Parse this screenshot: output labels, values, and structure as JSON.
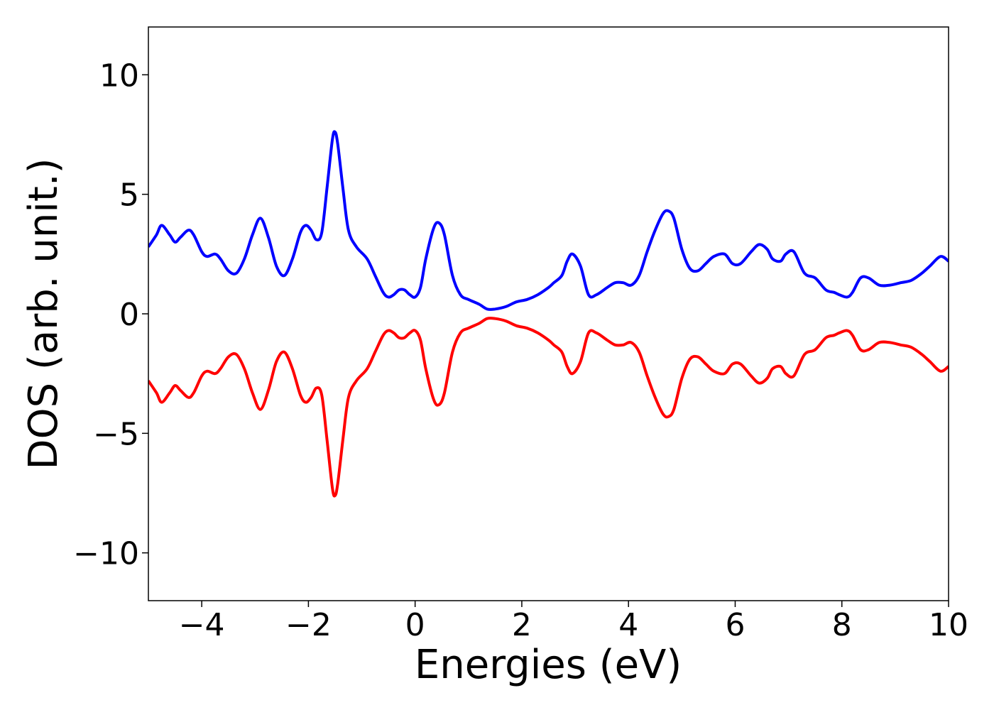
{
  "chart_data": {
    "type": "line",
    "title": "",
    "xlabel": "Energies (eV)",
    "ylabel": "DOS (arb. unit.)",
    "xlim": [
      -5,
      10
    ],
    "ylim": [
      -12,
      12
    ],
    "xticks": [
      -4,
      -2,
      0,
      2,
      4,
      6,
      8,
      10
    ],
    "yticks": [
      -10,
      -5,
      0,
      5,
      10
    ],
    "xtick_labels": [
      "−4",
      "−2",
      "0",
      "2",
      "4",
      "6",
      "8",
      "10"
    ],
    "ytick_labels": [
      "−10",
      "−5",
      "0",
      "5",
      "10"
    ],
    "grid": false,
    "legend": "none",
    "series": [
      {
        "color": "#0000ff",
        "x": [
          -5.0,
          -4.85,
          -4.75,
          -4.6,
          -4.5,
          -4.4,
          -4.25,
          -4.15,
          -4.0,
          -3.9,
          -3.75,
          -3.65,
          -3.5,
          -3.35,
          -3.2,
          -3.05,
          -2.9,
          -2.75,
          -2.6,
          -2.45,
          -2.3,
          -2.15,
          -2.05,
          -1.95,
          -1.85,
          -1.75,
          -1.65,
          -1.55,
          -1.5,
          -1.45,
          -1.35,
          -1.25,
          -1.1,
          -0.9,
          -0.75,
          -0.6,
          -0.5,
          -0.4,
          -0.3,
          -0.2,
          -0.1,
          0.0,
          0.1,
          0.2,
          0.35,
          0.45,
          0.55,
          0.7,
          0.85,
          1.0,
          1.2,
          1.35,
          1.5,
          1.7,
          1.9,
          2.1,
          2.3,
          2.5,
          2.6,
          2.75,
          2.85,
          2.95,
          3.1,
          3.25,
          3.4,
          3.6,
          3.75,
          3.9,
          4.05,
          4.2,
          4.35,
          4.5,
          4.65,
          4.75,
          4.85,
          5.0,
          5.15,
          5.3,
          5.45,
          5.6,
          5.8,
          5.95,
          6.1,
          6.3,
          6.45,
          6.6,
          6.7,
          6.85,
          6.95,
          7.1,
          7.3,
          7.5,
          7.7,
          7.85,
          7.95,
          8.1,
          8.2,
          8.35,
          8.5,
          8.7,
          8.9,
          9.1,
          9.3,
          9.5,
          9.65,
          9.85,
          10.0
        ],
        "values": [
          2.8,
          3.3,
          3.7,
          3.3,
          3.0,
          3.2,
          3.5,
          3.3,
          2.6,
          2.4,
          2.5,
          2.3,
          1.8,
          1.7,
          2.3,
          3.3,
          4.0,
          3.2,
          2.0,
          1.6,
          2.3,
          3.4,
          3.7,
          3.5,
          3.1,
          3.4,
          5.3,
          7.3,
          7.6,
          7.1,
          5.2,
          3.5,
          2.8,
          2.3,
          1.6,
          0.9,
          0.7,
          0.8,
          1.0,
          1.0,
          0.8,
          0.7,
          1.1,
          2.3,
          3.6,
          3.8,
          3.3,
          1.6,
          0.8,
          0.6,
          0.4,
          0.2,
          0.2,
          0.3,
          0.5,
          0.6,
          0.8,
          1.1,
          1.3,
          1.6,
          2.2,
          2.5,
          2.0,
          0.8,
          0.8,
          1.1,
          1.3,
          1.3,
          1.2,
          1.6,
          2.6,
          3.5,
          4.2,
          4.3,
          4.0,
          2.7,
          1.9,
          1.8,
          2.1,
          2.4,
          2.5,
          2.1,
          2.1,
          2.6,
          2.9,
          2.7,
          2.3,
          2.2,
          2.5,
          2.6,
          1.7,
          1.5,
          1.0,
          0.9,
          0.8,
          0.7,
          0.9,
          1.5,
          1.5,
          1.2,
          1.2,
          1.3,
          1.4,
          1.7,
          2.0,
          2.4,
          2.2
        ]
      },
      {
        "color": "#ff0000",
        "x": [
          -5.0,
          -4.85,
          -4.75,
          -4.6,
          -4.5,
          -4.4,
          -4.25,
          -4.15,
          -4.0,
          -3.9,
          -3.75,
          -3.65,
          -3.5,
          -3.35,
          -3.2,
          -3.05,
          -2.9,
          -2.75,
          -2.6,
          -2.45,
          -2.3,
          -2.15,
          -2.05,
          -1.95,
          -1.85,
          -1.75,
          -1.65,
          -1.55,
          -1.5,
          -1.45,
          -1.35,
          -1.25,
          -1.1,
          -0.9,
          -0.75,
          -0.6,
          -0.5,
          -0.4,
          -0.3,
          -0.2,
          -0.1,
          0.0,
          0.1,
          0.2,
          0.35,
          0.45,
          0.55,
          0.7,
          0.85,
          1.0,
          1.2,
          1.35,
          1.5,
          1.7,
          1.9,
          2.1,
          2.3,
          2.5,
          2.6,
          2.75,
          2.85,
          2.95,
          3.1,
          3.25,
          3.4,
          3.6,
          3.75,
          3.9,
          4.05,
          4.2,
          4.35,
          4.5,
          4.65,
          4.75,
          4.85,
          5.0,
          5.15,
          5.3,
          5.45,
          5.6,
          5.8,
          5.95,
          6.1,
          6.3,
          6.45,
          6.6,
          6.7,
          6.85,
          6.95,
          7.1,
          7.3,
          7.5,
          7.7,
          7.85,
          7.95,
          8.1,
          8.2,
          8.35,
          8.5,
          8.7,
          8.9,
          9.1,
          9.3,
          9.5,
          9.65,
          9.85,
          10.0
        ],
        "values": [
          -2.8,
          -3.3,
          -3.7,
          -3.3,
          -3.0,
          -3.2,
          -3.5,
          -3.3,
          -2.6,
          -2.4,
          -2.5,
          -2.3,
          -1.8,
          -1.7,
          -2.3,
          -3.3,
          -4.0,
          -3.2,
          -2.0,
          -1.6,
          -2.3,
          -3.4,
          -3.7,
          -3.5,
          -3.1,
          -3.4,
          -5.3,
          -7.3,
          -7.6,
          -7.1,
          -5.2,
          -3.5,
          -2.8,
          -2.3,
          -1.6,
          -0.9,
          -0.7,
          -0.8,
          -1.0,
          -1.0,
          -0.8,
          -0.7,
          -1.1,
          -2.3,
          -3.6,
          -3.8,
          -3.3,
          -1.6,
          -0.8,
          -0.6,
          -0.4,
          -0.2,
          -0.2,
          -0.3,
          -0.5,
          -0.6,
          -0.8,
          -1.1,
          -1.3,
          -1.6,
          -2.2,
          -2.5,
          -2.0,
          -0.8,
          -0.8,
          -1.1,
          -1.3,
          -1.3,
          -1.2,
          -1.6,
          -2.6,
          -3.5,
          -4.2,
          -4.3,
          -4.0,
          -2.7,
          -1.9,
          -1.8,
          -2.1,
          -2.4,
          -2.5,
          -2.1,
          -2.1,
          -2.6,
          -2.9,
          -2.7,
          -2.3,
          -2.2,
          -2.5,
          -2.6,
          -1.7,
          -1.5,
          -1.0,
          -0.9,
          -0.8,
          -0.7,
          -0.9,
          -1.5,
          -1.5,
          -1.2,
          -1.2,
          -1.3,
          -1.4,
          -1.7,
          -2.0,
          -2.4,
          -2.2
        ]
      }
    ]
  }
}
